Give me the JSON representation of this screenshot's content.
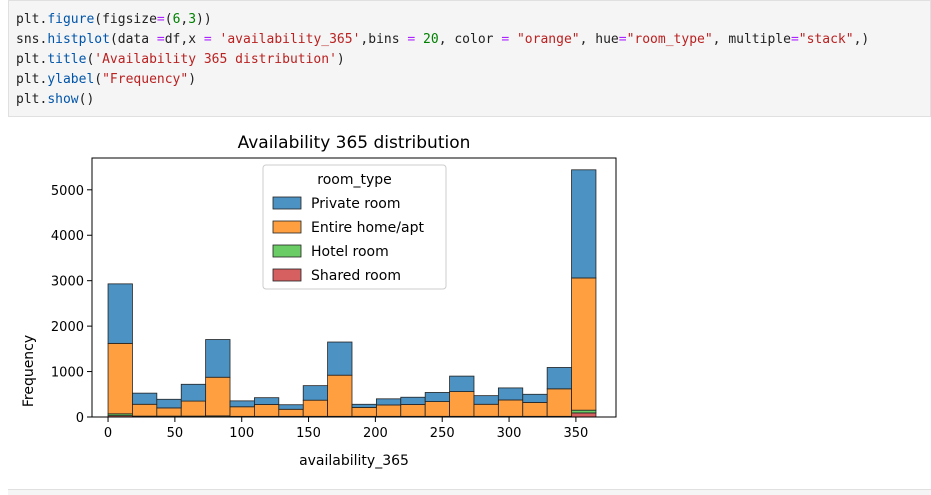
{
  "code_cell": {
    "lines": [
      [
        {
          "t": "plt.",
          "c": "name"
        },
        {
          "t": "figure",
          "c": "mem"
        },
        {
          "t": "(figsize",
          "c": "name"
        },
        {
          "t": "=",
          "c": "op"
        },
        {
          "t": "(",
          "c": "name"
        },
        {
          "t": "6",
          "c": "num"
        },
        {
          "t": ",",
          "c": "name"
        },
        {
          "t": "3",
          "c": "num"
        },
        {
          "t": "))",
          "c": "name"
        }
      ],
      [
        {
          "t": "sns.",
          "c": "name"
        },
        {
          "t": "histplot",
          "c": "mem"
        },
        {
          "t": "(data ",
          "c": "name"
        },
        {
          "t": "=",
          "c": "op"
        },
        {
          "t": "df,x ",
          "c": "name"
        },
        {
          "t": "=",
          "c": "op"
        },
        {
          "t": " ",
          "c": "name"
        },
        {
          "t": "'availability_365'",
          "c": "str"
        },
        {
          "t": ",bins ",
          "c": "name"
        },
        {
          "t": "=",
          "c": "op"
        },
        {
          "t": " ",
          "c": "name"
        },
        {
          "t": "20",
          "c": "num"
        },
        {
          "t": ", color ",
          "c": "name"
        },
        {
          "t": "=",
          "c": "op"
        },
        {
          "t": " ",
          "c": "name"
        },
        {
          "t": "\"orange\"",
          "c": "str"
        },
        {
          "t": ", hue",
          "c": "name"
        },
        {
          "t": "=",
          "c": "op"
        },
        {
          "t": "\"room_type\"",
          "c": "str"
        },
        {
          "t": ", multiple",
          "c": "name"
        },
        {
          "t": "=",
          "c": "op"
        },
        {
          "t": "\"stack\"",
          "c": "str"
        },
        {
          "t": ",)",
          "c": "name"
        }
      ],
      [
        {
          "t": "plt.",
          "c": "name"
        },
        {
          "t": "title",
          "c": "mem"
        },
        {
          "t": "(",
          "c": "name"
        },
        {
          "t": "'Availability 365 distribution'",
          "c": "str"
        },
        {
          "t": ")",
          "c": "name"
        }
      ],
      [
        {
          "t": "plt.",
          "c": "name"
        },
        {
          "t": "ylabel",
          "c": "mem"
        },
        {
          "t": "(",
          "c": "name"
        },
        {
          "t": "\"Frequency\"",
          "c": "str"
        },
        {
          "t": ")",
          "c": "name"
        }
      ],
      [
        {
          "t": "plt.",
          "c": "name"
        },
        {
          "t": "show",
          "c": "mem"
        },
        {
          "t": "()",
          "c": "name"
        }
      ]
    ]
  },
  "chart_data": {
    "type": "bar",
    "stacked": true,
    "title": "Availability 365 distribution",
    "xlabel": "availability_365",
    "ylabel": "Frequency",
    "xlim": [
      -12,
      380
    ],
    "ylim": [
      0,
      5700
    ],
    "xticks": [
      0,
      50,
      100,
      150,
      200,
      250,
      300,
      350
    ],
    "yticks": [
      0,
      1000,
      2000,
      3000,
      4000,
      5000
    ],
    "bin_edges": [
      0,
      18.25,
      36.5,
      54.75,
      73,
      91.25,
      109.5,
      127.75,
      146,
      164.25,
      182.5,
      200.75,
      219,
      237.25,
      255.5,
      273.75,
      292,
      310.25,
      328.5,
      346.75,
      365
    ],
    "legend": {
      "title": "room_type",
      "position": "upper-center"
    },
    "series": [
      {
        "name": "Shared room",
        "color": "#d65f5f",
        "values": [
          30,
          5,
          5,
          5,
          5,
          5,
          5,
          5,
          5,
          5,
          5,
          5,
          5,
          5,
          5,
          5,
          5,
          5,
          5,
          90
        ]
      },
      {
        "name": "Hotel room",
        "color": "#6acc64",
        "values": [
          40,
          15,
          15,
          15,
          20,
          10,
          10,
          10,
          10,
          10,
          10,
          10,
          10,
          10,
          10,
          10,
          10,
          10,
          10,
          60
        ]
      },
      {
        "name": "Entire home/apt",
        "color": "#ff9f40",
        "values": [
          1550,
          260,
          180,
          330,
          850,
          210,
          260,
          155,
          355,
          905,
          195,
          250,
          260,
          325,
          545,
          265,
          360,
          305,
          605,
          2910
        ]
      },
      {
        "name": "Private room",
        "color": "#4c92c3",
        "values": [
          1310,
          245,
          190,
          370,
          830,
          130,
          150,
          100,
          320,
          730,
          70,
          135,
          160,
          200,
          340,
          190,
          265,
          180,
          470,
          2380
        ]
      }
    ],
    "legend_order": [
      "Private room",
      "Entire home/apt",
      "Hotel room",
      "Shared room"
    ]
  }
}
